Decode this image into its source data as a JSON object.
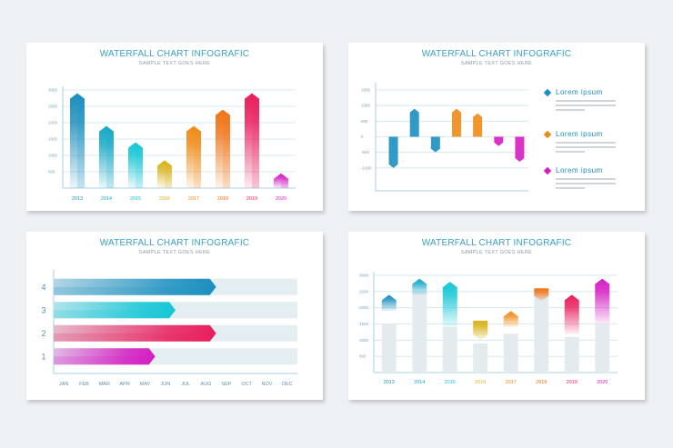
{
  "title": "WATERFALL CHART INFOGRAFIC",
  "subtitle": "SAMPLE TEXT GOES HERE",
  "colors": {
    "blue": "#1b8fc0",
    "cyan": "#16c6d6",
    "yellow": "#d9b21a",
    "orange": "#f08a16",
    "red": "#e81e5c",
    "magenta": "#d41ec2"
  },
  "legend": [
    {
      "label": "Lorem ipsum",
      "color": "#1b8fc0",
      "icon": "diamond-icon",
      "text": [
        "xxxxxxxxxxxxxxxxxxxxxxxxxxxxxxxxx",
        "xxxxxxxxxxxxxxxxxxxxxxxxxxxxxxxxx",
        "xxxxxxxxxxxxxxxx"
      ]
    },
    {
      "label": "Lorem ipsum",
      "color": "#f08a16",
      "icon": "diamond-icon",
      "text": [
        "xxxxxxxxxxxxxxxxxxxxxxxxxxxxxxxxx",
        "xxxxxxxxxxxxxxxxxxxxxxxxxxxxxxxxx",
        "xxxxxxxxxxxxxxxx"
      ]
    },
    {
      "label": "Lorem ipsum",
      "color": "#d41ec2",
      "icon": "diamond-icon",
      "text": [
        "xxxxxxxxxxxxxxxxxxxxxxxxxxxxxxxxx",
        "xxxxxxxxxxxxxxxxxxxxxxxxxxxxxxxxx",
        "xxxxxxxxxxxxxxxx"
      ]
    }
  ],
  "chart_data": [
    {
      "type": "bar",
      "title": "WATERFALL CHART INFOGRAFIC",
      "subtitle": "SAMPLE TEXT GOES HERE",
      "categories": [
        "2013",
        "2014",
        "2015",
        "2016",
        "2017",
        "2018",
        "2019",
        "2020"
      ],
      "values": [
        2900,
        1900,
        1400,
        850,
        1900,
        2400,
        2900,
        450
      ],
      "colors": [
        "#1b8fc0",
        "#16a8c6",
        "#16c6d6",
        "#d9b21a",
        "#f08a16",
        "#f07416",
        "#e81e5c",
        "#d41ec2"
      ],
      "yticks": [
        500,
        1000,
        1500,
        2000,
        2500,
        3000
      ],
      "ylim": [
        0,
        3000
      ],
      "grid": true
    },
    {
      "type": "bar",
      "title": "WATERFALL CHART INFOGRAFIC",
      "subtitle": "SAMPLE TEXT GOES HERE",
      "categories": [
        "",
        "",
        "",
        "",
        "",
        "",
        ""
      ],
      "values": [
        -1000,
        900,
        -500,
        900,
        750,
        -300,
        -800
      ],
      "colors": [
        "#1b8fc0",
        "#1b8fc0",
        "#1b8fc0",
        "#f08a16",
        "#f08a16",
        "#d41ec2",
        "#d41ec2"
      ],
      "yticks": [
        1500,
        1000,
        500,
        0,
        -500,
        -1000
      ],
      "ylim": [
        -1500,
        1500
      ],
      "grid": true
    },
    {
      "type": "bar",
      "orientation": "horizontal",
      "title": "WATERFALL CHART INFOGRAFIC",
      "subtitle": "SAMPLE TEXT GOES HERE",
      "categories": [
        "4",
        "3",
        "2",
        "1"
      ],
      "x": [
        "JAN",
        "FEB",
        "MAR",
        "APR",
        "MAY",
        "JUN",
        "JUL",
        "AUG",
        "SEP",
        "OCT",
        "NOV",
        "DEC"
      ],
      "values": [
        8,
        6,
        8,
        5
      ],
      "colors": [
        "#1b8fc0",
        "#16c6d6",
        "#e81e5c",
        "#d41ec2"
      ],
      "xlim": [
        0,
        12
      ]
    },
    {
      "type": "bar",
      "subtype": "floating",
      "title": "WATERFALL CHART INFOGRAFIC",
      "subtitle": "SAMPLE TEXT GOES HERE",
      "categories": [
        "2013",
        "2014",
        "2015",
        "2016",
        "2017",
        "2018",
        "2019",
        "2020"
      ],
      "ranges": [
        [
          1900,
          2400
        ],
        [
          2400,
          2900
        ],
        [
          1400,
          2800
        ],
        [
          1000,
          1600
        ],
        [
          1400,
          1900
        ],
        [
          2200,
          2600
        ],
        [
          1200,
          2400
        ],
        [
          1500,
          2900
        ]
      ],
      "base_values": [
        1500,
        2500,
        1400,
        900,
        1200,
        2500,
        1100,
        1500
      ],
      "colors": [
        "#1b8fc0",
        "#16a8c6",
        "#16c6d6",
        "#d9b21a",
        "#f08a16",
        "#f07416",
        "#e81e5c",
        "#d41ec2"
      ],
      "yticks": [
        500,
        1000,
        1500,
        2000,
        2500,
        3000
      ],
      "ylim": [
        0,
        3000
      ],
      "grid": true
    }
  ]
}
